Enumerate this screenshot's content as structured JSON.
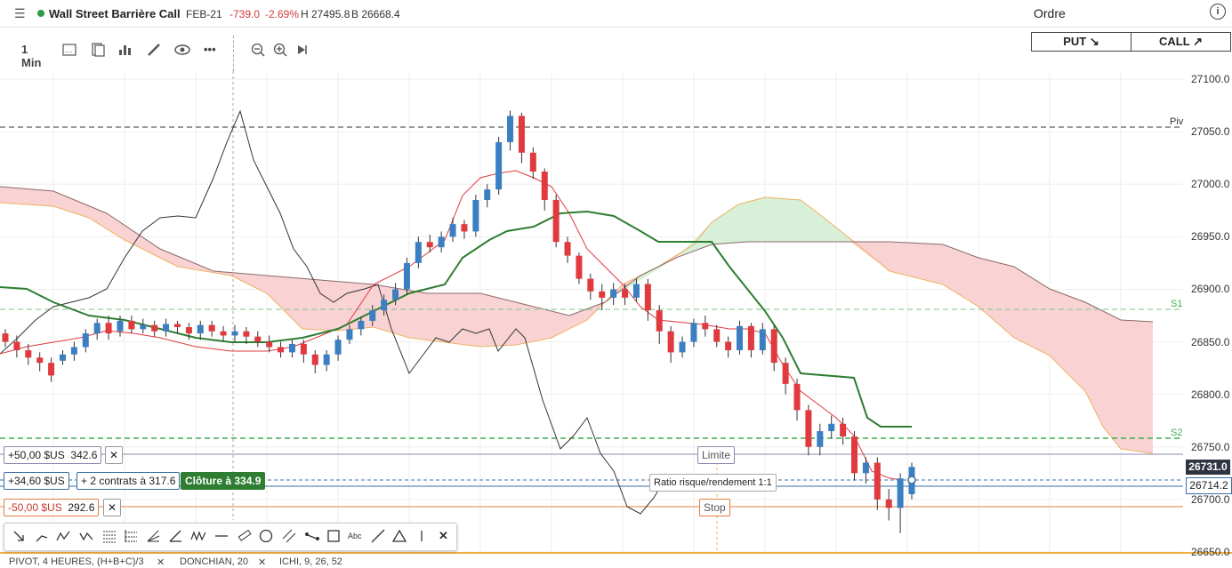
{
  "header": {
    "instrument": "Wall Street Barrière Call",
    "expiry": "FEB-21",
    "change": "-739.0",
    "change_pct": "-2.69%",
    "high": "H 27495.8",
    "low": "B 26668.4",
    "order_title": "Ordre",
    "info_icon": "i"
  },
  "toolbar": {
    "timeframe": "1 Min",
    "icons": [
      "candles-settings-icon",
      "indicators-icon",
      "bar-chart-icon",
      "pencil-icon",
      "eye-icon",
      "more-icon",
      "zoom-out-icon",
      "zoom-in-icon",
      "play-icon"
    ]
  },
  "trade": {
    "put_label": "PUT ↘",
    "call_label": "CALL ↗"
  },
  "price_axis": [
    "27100.0",
    "27050.0",
    "27000.0",
    "26950.0",
    "26900.0",
    "26850.0",
    "26800.0",
    "26750.0",
    "26700.0",
    "26650.0"
  ],
  "pivots": {
    "piv": "Piv",
    "s1": "S1",
    "s2": "S2"
  },
  "orders": {
    "limit_profit": "+50,00 $US",
    "limit_price": "342.6",
    "current_profit": "+34,60 $US",
    "contracts": "+ 2 contrats à 317.6",
    "close_label": "Clôture à 334.9",
    "stop_loss": "-50,00 $US",
    "stop_price": "292.6",
    "limit_tag": "Limite",
    "stop_tag": "Stop",
    "ratio_tag": "Ratio risque/rendement 1:1",
    "close_x": "✕"
  },
  "price_boxes": {
    "current": "26731.0",
    "entry": "26714.2"
  },
  "colors": {
    "up": "#3a7fc1",
    "down": "#e0393e",
    "green_line": "#2e7d32",
    "cloud_red": "#f9d3d3",
    "cloud_green": "#d8efd8",
    "pivot_green": "#3fae4a"
  },
  "drawing_tools": [
    "arrow-icon",
    "line-icon",
    "zigzag-icon",
    "wave-icon",
    "fib-icon",
    "fib-fan-icon",
    "pitchfork-icon",
    "angle-icon",
    "pattern-icon",
    "hline-icon",
    "ruler-icon",
    "circle-icon",
    "channel-icon",
    "path-icon",
    "rect-icon",
    "text-icon",
    "ray-icon",
    "triangle-icon",
    "vline-icon",
    "close-icon"
  ],
  "text_tool": "Abc",
  "indicators": [
    "PIVOT, 4 HEURES, (H+B+C)/3",
    "DONCHIAN, 20",
    "ICHI, 9, 26, 52"
  ],
  "chart_data": {
    "type": "candlestick",
    "ylim": [
      26640,
      27115
    ],
    "candles": [
      [
        26858,
        26850,
        26862,
        26845
      ],
      [
        26850,
        26842,
        26856,
        26835
      ],
      [
        26842,
        26835,
        26848,
        26828
      ],
      [
        26835,
        26830,
        26840,
        26822
      ],
      [
        26830,
        26818,
        26835,
        26812
      ],
      [
        26832,
        26838,
        26842,
        26828
      ],
      [
        26838,
        26845,
        26850,
        26832
      ],
      [
        26845,
        26858,
        26862,
        26840
      ],
      [
        26858,
        26868,
        26872,
        26852
      ],
      [
        26868,
        26858,
        26875,
        26852
      ],
      [
        26860,
        26870,
        26875,
        26855
      ],
      [
        26870,
        26862,
        26875,
        26858
      ],
      [
        26862,
        26866,
        26872,
        26858
      ],
      [
        26866,
        26860,
        26870,
        26855
      ],
      [
        26860,
        26867,
        26872,
        26855
      ],
      [
        26867,
        26864,
        26870,
        26858
      ],
      [
        26864,
        26858,
        26868,
        26852
      ],
      [
        26858,
        26866,
        26870,
        26852
      ],
      [
        26866,
        26860,
        26870,
        26855
      ],
      [
        26860,
        26856,
        26865,
        26850
      ],
      [
        26856,
        26860,
        26866,
        26850
      ],
      [
        26860,
        26855,
        26864,
        26848
      ],
      [
        26855,
        26850,
        26860,
        26845
      ],
      [
        26850,
        26845,
        26856,
        26840
      ],
      [
        26845,
        26840,
        26850,
        26835
      ],
      [
        26840,
        26848,
        26852,
        26835
      ],
      [
        26848,
        26838,
        26852,
        26830
      ],
      [
        26838,
        26828,
        26842,
        26820
      ],
      [
        26828,
        26838,
        26842,
        26822
      ],
      [
        26838,
        26852,
        26856,
        26832
      ],
      [
        26852,
        26862,
        26866,
        26848
      ],
      [
        26862,
        26870,
        26874,
        26856
      ],
      [
        26870,
        26880,
        26885,
        26865
      ],
      [
        26880,
        26890,
        26895,
        26875
      ],
      [
        26890,
        26900,
        26906,
        26885
      ],
      [
        26900,
        26925,
        26930,
        26895
      ],
      [
        26925,
        26945,
        26950,
        26920
      ],
      [
        26945,
        26940,
        26952,
        26935
      ],
      [
        26940,
        26950,
        26955,
        26935
      ],
      [
        26950,
        26962,
        26968,
        26945
      ],
      [
        26962,
        26955,
        26966,
        26948
      ],
      [
        26955,
        26985,
        26990,
        26950
      ],
      [
        26985,
        26995,
        27000,
        26978
      ],
      [
        26995,
        27040,
        27045,
        26990
      ],
      [
        27040,
        27065,
        27070,
        27032
      ],
      [
        27065,
        27030,
        27068,
        27020
      ],
      [
        27030,
        27012,
        27035,
        27005
      ],
      [
        27012,
        26985,
        27015,
        26975
      ],
      [
        26985,
        26945,
        26990,
        26940
      ],
      [
        26945,
        26932,
        26950,
        26925
      ],
      [
        26932,
        26910,
        26935,
        26905
      ],
      [
        26910,
        26898,
        26915,
        26890
      ],
      [
        26898,
        26892,
        26905,
        26880
      ],
      [
        26892,
        26900,
        26906,
        26885
      ],
      [
        26900,
        26892,
        26905,
        26885
      ],
      [
        26892,
        26905,
        26910,
        26888
      ],
      [
        26905,
        26880,
        26910,
        26870
      ],
      [
        26880,
        26860,
        26885,
        26848
      ],
      [
        26860,
        26840,
        26865,
        26830
      ],
      [
        26840,
        26850,
        26855,
        26835
      ],
      [
        26850,
        26868,
        26872,
        26845
      ],
      [
        26868,
        26862,
        26875,
        26855
      ],
      [
        26862,
        26850,
        26866,
        26845
      ],
      [
        26850,
        26842,
        26855,
        26835
      ],
      [
        26842,
        26865,
        26870,
        26838
      ],
      [
        26865,
        26842,
        26868,
        26835
      ],
      [
        26842,
        26862,
        26868,
        26838
      ],
      [
        26862,
        26830,
        26866,
        26822
      ],
      [
        26830,
        26810,
        26835,
        26800
      ],
      [
        26810,
        26785,
        26815,
        26775
      ],
      [
        26785,
        26750,
        26790,
        26742
      ],
      [
        26750,
        26765,
        26772,
        26742
      ],
      [
        26765,
        26772,
        26780,
        26758
      ],
      [
        26772,
        26760,
        26778,
        26752
      ],
      [
        26760,
        26725,
        26765,
        26718
      ],
      [
        26725,
        26735,
        26740,
        26715
      ],
      [
        26735,
        26700,
        26740,
        26690
      ],
      [
        26700,
        26692,
        26710,
        26680
      ],
      [
        26692,
        26720,
        26725,
        26668
      ],
      [
        26705,
        26731,
        26735,
        26700
      ]
    ]
  }
}
